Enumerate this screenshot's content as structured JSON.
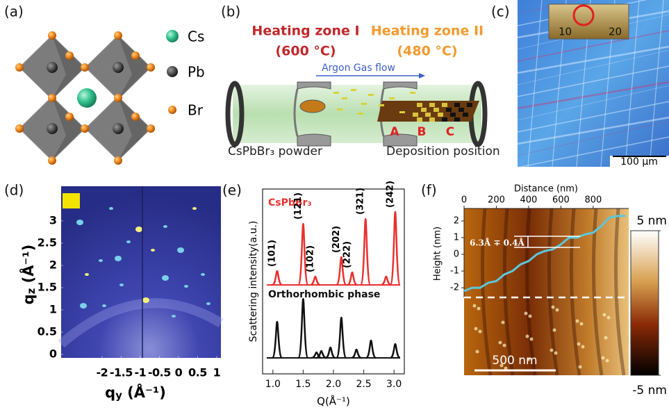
{
  "panels": {
    "a": {
      "label": "(a)",
      "legend": [
        "Cs",
        "Pb",
        "Br"
      ]
    },
    "b": {
      "label": "(b)",
      "zone1": {
        "name": "Heating zone I",
        "temp": "(600 °C)"
      },
      "zone2": {
        "name": "Heating zone II",
        "temp": "(480 °C)"
      },
      "gas": "Argon Gas flow",
      "positions": [
        "A",
        "B",
        "C"
      ],
      "source": "CsPbBr₃ powder",
      "deposition": "Deposition position"
    },
    "c": {
      "label": "(c)",
      "ruler": [
        "10",
        "20"
      ],
      "scale_bar": "100 μm"
    }
  },
  "chart_data": [
    {
      "type": "image",
      "panel_label": "(d)",
      "xlabel": {
        "symbol": "q",
        "sub": "y",
        "unit": " (Å⁻¹)"
      },
      "ylabel": {
        "symbol": "q",
        "sub": "z",
        "unit": " (Å⁻¹)"
      },
      "xlim": [
        -3.07,
        1.11
      ],
      "ylim": [
        -0.08,
        3.78
      ],
      "xticks": [
        -2,
        -1.5,
        -1,
        -0.5,
        0,
        0.5,
        1
      ],
      "yticks": [
        0,
        0.5,
        1,
        1.5,
        2,
        2.5,
        3
      ]
    },
    {
      "type": "peaks",
      "panel_label": "(e)",
      "xlabel": "Q(Å⁻¹)",
      "ylabel": "Scattering intensity(a.u.)",
      "xlim": [
        0.83,
        3.17
      ],
      "xticks": [
        {
          "value": 1,
          "label": "1.0"
        },
        {
          "value": 1.5,
          "label": "1.5"
        },
        {
          "value": 2,
          "label": "2.0"
        },
        {
          "value": 2.5,
          "label": "2.5"
        },
        {
          "value": 3,
          "label": "3.0"
        }
      ],
      "ylim": [
        0,
        110
      ],
      "series": [
        {
          "name": "CsPbBr₃",
          "color": "#e8312f",
          "x": [
            1.07,
            1.5,
            1.7,
            2.13,
            2.31,
            2.53,
            2.87,
            3.02
          ],
          "values": [
            20,
            88,
            12,
            40,
            18,
            95,
            12,
            105
          ],
          "peak_labels": [
            "(101)",
            "(121)",
            "(102)",
            "(202)",
            "(222)",
            "(321)",
            null,
            "(242)"
          ]
        },
        {
          "name": "Orthorhombic phase",
          "color": "#111111",
          "x": [
            1.07,
            1.5,
            1.72,
            1.8,
            1.95,
            2.13,
            2.38,
            2.62,
            3.02
          ],
          "values": [
            52,
            85,
            8,
            10,
            15,
            58,
            12,
            25,
            20
          ]
        }
      ]
    },
    {
      "type": "afm",
      "panel_label": "(f)",
      "xlabel": "Distance (nm)",
      "ylabel": "Height (nm)",
      "xlim": [
        0,
        1020
      ],
      "ylim": [
        -2.58,
        2.75
      ],
      "xticks": [
        0,
        200,
        400,
        600,
        800
      ],
      "yticks": [
        2,
        1,
        0,
        -1,
        -2
      ],
      "series": [
        {
          "color": "#5bc8dc",
          "x": [
            0,
            50,
            100,
            150,
            200,
            250,
            300,
            350,
            400,
            450,
            500,
            550,
            600,
            650,
            700,
            750,
            800,
            850,
            900,
            950,
            1000
          ],
          "values": [
            -2.2,
            -2.0,
            -2.0,
            -1.7,
            -1.6,
            -1.2,
            -1.0,
            -0.6,
            -0.4,
            0.0,
            0.2,
            0.3,
            0.6,
            1.0,
            1.0,
            1.2,
            1.3,
            1.7,
            2.2,
            2.3,
            2.3
          ]
        }
      ],
      "annotation": "6.3Å ∓ 0.4Å",
      "scale_bar": "500 nm",
      "colorbar": {
        "lim": [
          -5,
          5
        ],
        "ticks": [
          {
            "value": 5,
            "label": "5 nm"
          },
          {
            "value": -5,
            "label": "-5 nm"
          }
        ]
      }
    }
  ]
}
